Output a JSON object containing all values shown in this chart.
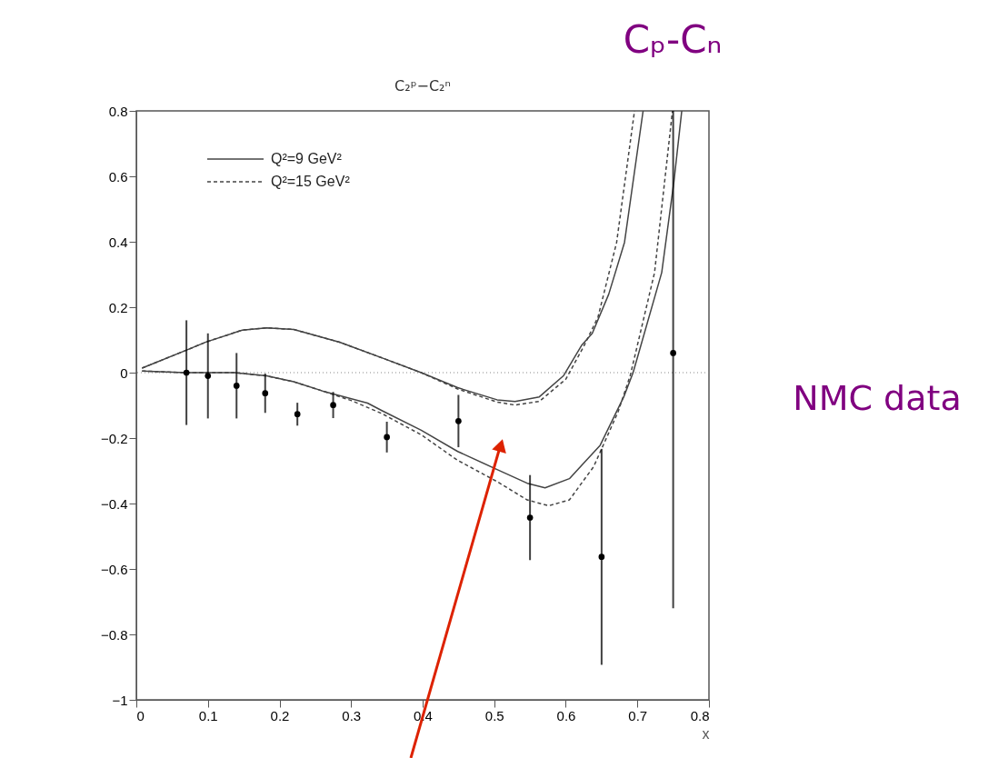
{
  "chart_data": {
    "type": "line",
    "title": "C₂ᵖ−C₂ⁿ",
    "xlabel": "x",
    "xlim": [
      0,
      0.8
    ],
    "xticks": [
      0,
      0.1,
      0.2,
      0.3,
      0.4,
      0.5,
      0.6,
      0.7,
      0.8
    ],
    "ylim": [
      -1,
      0.8
    ],
    "yticks": [
      -1,
      -0.8,
      -0.6,
      -0.4,
      -0.2,
      0,
      0.2,
      0.4,
      0.6,
      0.8
    ],
    "grid": false,
    "legend": "top left",
    "ref_lines": [
      {
        "axis": "y",
        "value": 0,
        "line_style": "dotted",
        "color": "#888888"
      }
    ],
    "annotations": [
      "Cₚ-Cₙ",
      "NMC data"
    ],
    "series": [
      {
        "name": "Q²=9 GeV²",
        "line_style": "solid",
        "color": "#444444",
        "x": [
          0.008,
          0.068,
          0.098,
          0.148,
          0.182,
          0.22,
          0.284,
          0.347,
          0.398,
          0.449,
          0.504,
          0.529,
          0.563,
          0.597,
          0.622,
          0.637,
          0.66,
          0.682,
          0.708
        ],
        "values": [
          0.014,
          0.067,
          0.094,
          0.13,
          0.137,
          0.132,
          0.093,
          0.042,
          0.0,
          -0.046,
          -0.083,
          -0.088,
          -0.074,
          -0.009,
          0.083,
          0.12,
          0.24,
          0.398,
          0.8
        ]
      },
      {
        "name": "Q²=15 GeV²",
        "line_style": "dashed",
        "color": "#444444",
        "x": [
          0.008,
          0.068,
          0.098,
          0.148,
          0.182,
          0.22,
          0.284,
          0.347,
          0.398,
          0.449,
          0.504,
          0.529,
          0.563,
          0.6,
          0.625,
          0.645,
          0.671,
          0.696
        ],
        "values": [
          0.014,
          0.067,
          0.094,
          0.13,
          0.137,
          0.132,
          0.093,
          0.042,
          0.0,
          -0.05,
          -0.09,
          -0.099,
          -0.088,
          -0.02,
          0.08,
          0.17,
          0.398,
          0.8
        ]
      },
      {
        "line_style": "solid",
        "color": "#444444",
        "x": [
          0.008,
          0.068,
          0.137,
          0.182,
          0.22,
          0.26,
          0.323,
          0.343,
          0.398,
          0.449,
          0.504,
          0.546,
          0.571,
          0.605,
          0.648,
          0.681,
          0.694,
          0.734,
          0.751,
          0.762
        ],
        "values": [
          0.005,
          0.0,
          0.0,
          -0.01,
          -0.028,
          -0.056,
          -0.093,
          -0.116,
          -0.176,
          -0.241,
          -0.296,
          -0.338,
          -0.352,
          -0.324,
          -0.222,
          -0.074,
          0.0,
          0.306,
          0.583,
          0.8
        ]
      },
      {
        "line_style": "dashed",
        "color": "#444444",
        "x": [
          0.008,
          0.068,
          0.137,
          0.182,
          0.22,
          0.26,
          0.3,
          0.343,
          0.398,
          0.449,
          0.504,
          0.546,
          0.576,
          0.605,
          0.639,
          0.673,
          0.69,
          0.724,
          0.749
        ],
        "values": [
          0.005,
          0.0,
          0.0,
          -0.01,
          -0.028,
          -0.056,
          -0.085,
          -0.125,
          -0.19,
          -0.268,
          -0.333,
          -0.389,
          -0.407,
          -0.389,
          -0.287,
          -0.12,
          -0.009,
          0.306,
          0.8
        ]
      },
      {
        "type": "scatter",
        "marker": "circle",
        "color": "#000000",
        "x": [
          0.07,
          0.1,
          0.14,
          0.18,
          0.225,
          0.275,
          0.35,
          0.45,
          0.55,
          0.65,
          0.75
        ],
        "values": [
          0,
          -0.01,
          -0.04,
          -0.063,
          -0.127,
          -0.099,
          -0.197,
          -0.148,
          -0.443,
          -0.563,
          0.06
        ],
        "errors": [
          0.16,
          0.13,
          0.1,
          0.06,
          0.035,
          0.04,
          0.047,
          0.08,
          0.13,
          0.33,
          [
            -0.72,
            0.8
          ]
        ]
      }
    ]
  }
}
